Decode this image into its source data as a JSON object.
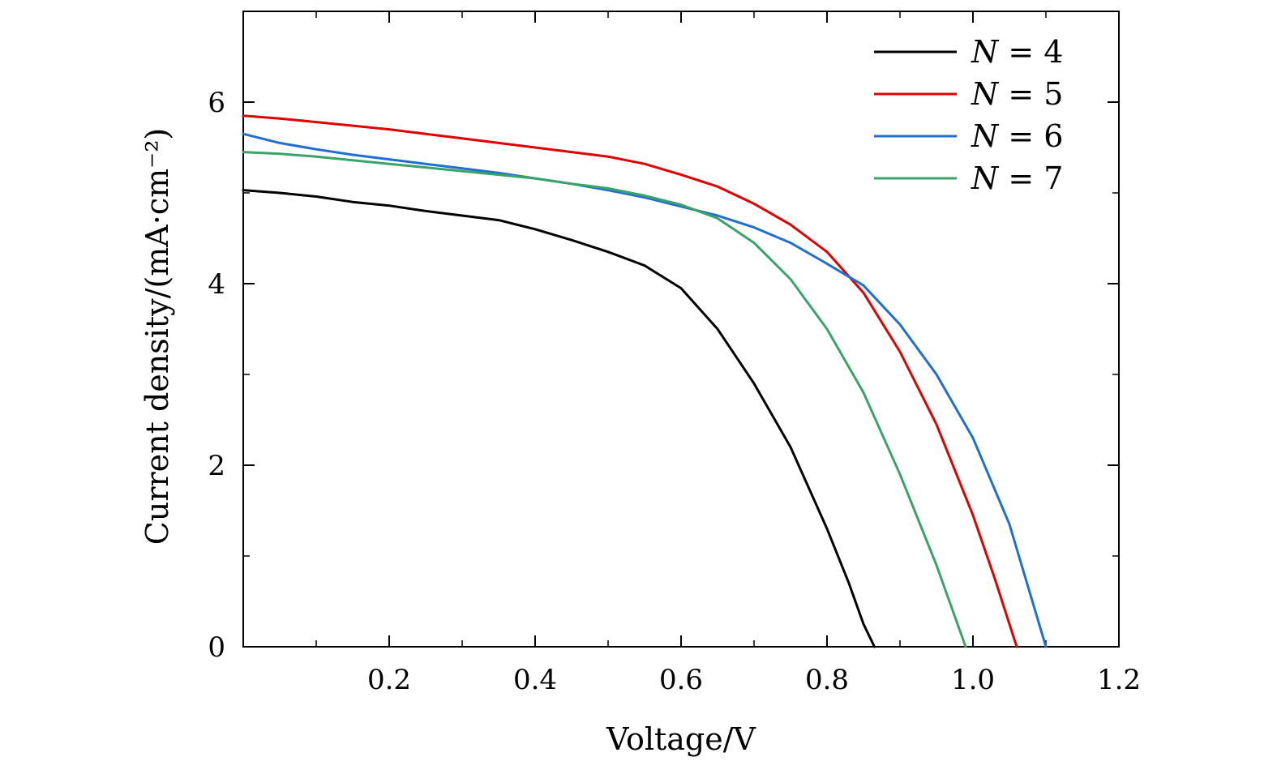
{
  "chart_data": {
    "type": "line",
    "xlabel": "Voltage/V",
    "ylabel": "Current density/(mA·cm⁻²)",
    "xlim": [
      0,
      1.2
    ],
    "ylim": [
      0,
      7
    ],
    "x_ticks": [
      0.2,
      0.4,
      0.6,
      0.8,
      1.0,
      1.2
    ],
    "x_tick_labels": [
      "0.2",
      "0.4",
      "0.6",
      "0.8",
      "1.0",
      "1.2"
    ],
    "y_ticks": [
      0,
      2,
      4,
      6
    ],
    "y_tick_labels": [
      "0",
      "2",
      "4",
      "6"
    ],
    "grid": false,
    "legend_position": "top-right",
    "series": [
      {
        "name": "N = 4",
        "legend_var": "N",
        "legend_value": "4",
        "color": "#000000",
        "x": [
          0.0,
          0.05,
          0.1,
          0.15,
          0.2,
          0.25,
          0.3,
          0.35,
          0.4,
          0.45,
          0.5,
          0.55,
          0.6,
          0.65,
          0.7,
          0.75,
          0.8,
          0.83,
          0.85,
          0.865
        ],
        "y": [
          5.03,
          5.0,
          4.96,
          4.9,
          4.86,
          4.8,
          4.75,
          4.7,
          4.6,
          4.48,
          4.35,
          4.2,
          3.95,
          3.5,
          2.9,
          2.2,
          1.3,
          0.7,
          0.25,
          0.0
        ]
      },
      {
        "name": "N = 5",
        "legend_var": "N",
        "legend_value": "5",
        "color": "#e00000",
        "x": [
          0.0,
          0.05,
          0.1,
          0.15,
          0.2,
          0.25,
          0.3,
          0.35,
          0.4,
          0.45,
          0.5,
          0.55,
          0.6,
          0.65,
          0.7,
          0.75,
          0.8,
          0.85,
          0.9,
          0.95,
          1.0,
          1.03,
          1.06
        ],
        "y": [
          5.85,
          5.82,
          5.78,
          5.74,
          5.7,
          5.65,
          5.6,
          5.55,
          5.5,
          5.45,
          5.4,
          5.32,
          5.2,
          5.07,
          4.88,
          4.65,
          4.35,
          3.9,
          3.25,
          2.45,
          1.45,
          0.75,
          0.0
        ]
      },
      {
        "name": "N = 6",
        "legend_var": "N",
        "legend_value": "6",
        "color": "#1f6fd1",
        "x": [
          0.0,
          0.05,
          0.1,
          0.15,
          0.2,
          0.25,
          0.3,
          0.35,
          0.4,
          0.45,
          0.5,
          0.55,
          0.6,
          0.65,
          0.7,
          0.75,
          0.8,
          0.85,
          0.9,
          0.95,
          1.0,
          1.05,
          1.1
        ],
        "y": [
          5.65,
          5.55,
          5.48,
          5.42,
          5.37,
          5.32,
          5.27,
          5.22,
          5.16,
          5.1,
          5.03,
          4.95,
          4.85,
          4.75,
          4.62,
          4.45,
          4.22,
          3.98,
          3.55,
          3.0,
          2.3,
          1.35,
          0.0
        ]
      },
      {
        "name": "N = 7",
        "legend_var": "N",
        "legend_value": "7",
        "color": "#3aa36a",
        "x": [
          0.0,
          0.05,
          0.1,
          0.15,
          0.2,
          0.25,
          0.3,
          0.35,
          0.4,
          0.45,
          0.5,
          0.55,
          0.6,
          0.65,
          0.7,
          0.75,
          0.8,
          0.85,
          0.9,
          0.95,
          0.99
        ],
        "y": [
          5.45,
          5.43,
          5.4,
          5.36,
          5.32,
          5.28,
          5.24,
          5.2,
          5.16,
          5.1,
          5.05,
          4.97,
          4.87,
          4.72,
          4.45,
          4.05,
          3.5,
          2.8,
          1.9,
          0.9,
          0.0
        ]
      }
    ]
  }
}
